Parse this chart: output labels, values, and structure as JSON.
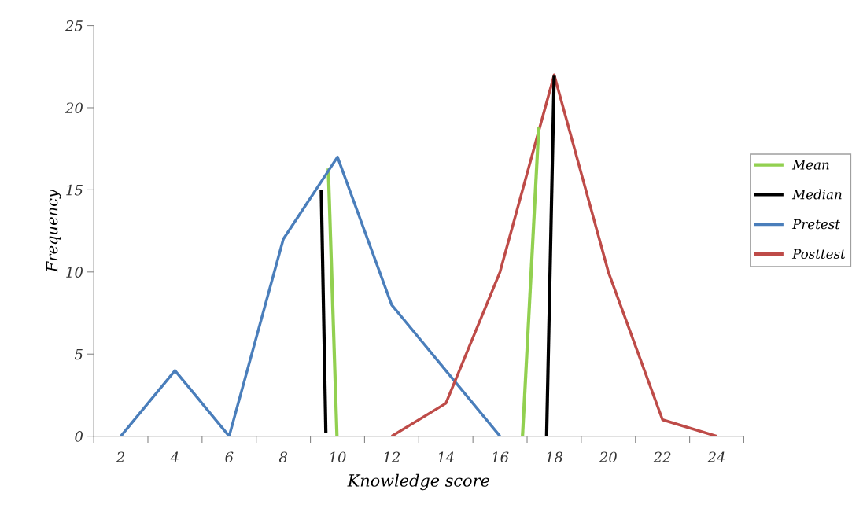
{
  "chart_data": {
    "type": "line",
    "xlabel": "Knowledge score",
    "ylabel": "Frequency",
    "xlim": [
      1,
      25
    ],
    "xticks": [
      {
        "value": 1,
        "label": null
      },
      {
        "value": 2,
        "label": "2"
      },
      {
        "value": 3,
        "label": null
      },
      {
        "value": 4,
        "label": "4"
      },
      {
        "value": 5,
        "label": null
      },
      {
        "value": 6,
        "label": "6"
      },
      {
        "value": 7,
        "label": null
      },
      {
        "value": 8,
        "label": "8"
      },
      {
        "value": 9,
        "label": null
      },
      {
        "value": 10,
        "label": "10"
      },
      {
        "value": 11,
        "label": null
      },
      {
        "value": 12,
        "label": "12"
      },
      {
        "value": 13,
        "label": null
      },
      {
        "value": 14,
        "label": "14"
      },
      {
        "value": 15,
        "label": null
      },
      {
        "value": 16,
        "label": "16"
      },
      {
        "value": 17,
        "label": null
      },
      {
        "value": 18,
        "label": "18"
      },
      {
        "value": 19,
        "label": null
      },
      {
        "value": 20,
        "label": "20"
      },
      {
        "value": 21,
        "label": null
      },
      {
        "value": 22,
        "label": "22"
      },
      {
        "value": 23,
        "label": null
      },
      {
        "value": 24,
        "label": "24"
      },
      {
        "value": 25,
        "label": null
      }
    ],
    "ylim": [
      0,
      25
    ],
    "yticks": [
      0,
      5,
      10,
      15,
      20,
      25
    ],
    "grid": false,
    "legend": "right",
    "marker": "none",
    "line_style": "solid",
    "series": [
      {
        "name": "Mean",
        "color": "#92d050",
        "x": [
          9.66,
          9.98
        ],
        "values": [
          16.3,
          0
        ]
      },
      {
        "name": "Median",
        "color": "#000000",
        "x": [
          9.4,
          9.57
        ],
        "values": [
          15.0,
          0.2
        ]
      },
      {
        "name": "Pretest",
        "color": "#4a7ebb",
        "x": [
          2,
          4,
          6,
          8,
          10,
          12,
          14,
          16
        ],
        "values": [
          0,
          4,
          0,
          12,
          17,
          8,
          4,
          0
        ]
      },
      {
        "name": "Posttest",
        "color": "#be4b48",
        "x": [
          12,
          14,
          16,
          18,
          20,
          22,
          24
        ],
        "values": [
          0,
          2,
          10,
          22,
          10,
          1,
          0
        ]
      },
      {
        "color": "#92d050",
        "x": [
          16.83,
          17.43
        ],
        "values": [
          0,
          18.8
        ]
      },
      {
        "color": "#000000",
        "x": [
          17.72,
          18.0
        ],
        "values": [
          0,
          22
        ]
      }
    ]
  }
}
